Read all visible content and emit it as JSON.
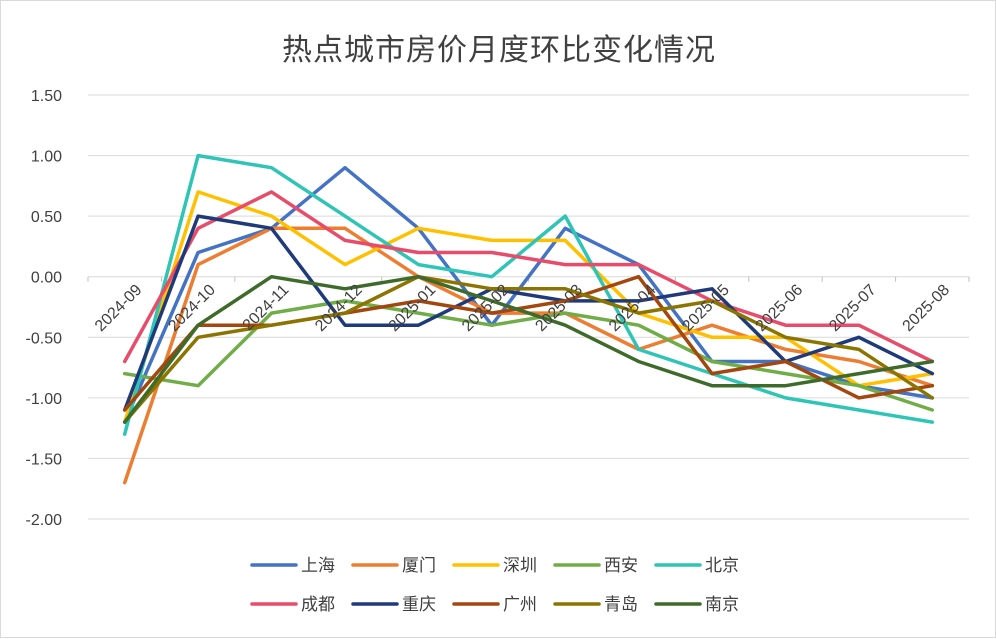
{
  "chart_data": {
    "type": "line",
    "title": "热点城市房价月度环比变化情况",
    "xlabel": "",
    "ylabel": "",
    "ylim": [
      -2.0,
      1.5
    ],
    "ytick_step": 0.5,
    "grid": true,
    "legend_position": "bottom",
    "categories": [
      "2024-09",
      "2024-10",
      "2024-11",
      "2024-12",
      "2025-01",
      "2025-02",
      "2025-03",
      "2025-04",
      "2025-05",
      "2025-06",
      "2025-07",
      "2025-08"
    ],
    "series": [
      {
        "name": "上海",
        "color": "#4472C4",
        "values": [
          -1.2,
          0.2,
          0.4,
          0.9,
          0.4,
          -0.4,
          0.4,
          0.1,
          -0.7,
          -0.7,
          -0.9,
          -1.0
        ]
      },
      {
        "name": "厦门",
        "color": "#ED7D31",
        "values": [
          -1.7,
          0.1,
          0.4,
          0.4,
          0.0,
          -0.3,
          -0.3,
          -0.6,
          -0.4,
          -0.6,
          -0.7,
          -0.9
        ]
      },
      {
        "name": "深圳",
        "color": "#FFC000",
        "values": [
          -1.2,
          0.7,
          0.5,
          0.1,
          0.4,
          0.3,
          0.3,
          -0.3,
          -0.5,
          -0.5,
          -0.9,
          -0.8
        ]
      },
      {
        "name": "西安",
        "color": "#70AD47",
        "values": [
          -0.8,
          -0.9,
          -0.3,
          -0.2,
          -0.3,
          -0.4,
          -0.3,
          -0.4,
          -0.7,
          -0.8,
          -0.9,
          -1.1
        ]
      },
      {
        "name": "北京",
        "color": "#2EC4B6",
        "values": [
          -1.3,
          1.0,
          0.9,
          0.5,
          0.1,
          0.0,
          0.5,
          -0.6,
          -0.8,
          -1.0,
          -1.1,
          -1.2
        ]
      },
      {
        "name": "成都",
        "color": "#E84C6A",
        "values": [
          -0.7,
          0.4,
          0.7,
          0.3,
          0.2,
          0.2,
          0.1,
          0.1,
          -0.2,
          -0.4,
          -0.4,
          -0.7
        ]
      },
      {
        "name": "重庆",
        "color": "#1F3A7A",
        "values": [
          -1.1,
          0.5,
          0.4,
          -0.4,
          -0.4,
          -0.1,
          -0.2,
          -0.2,
          -0.1,
          -0.7,
          -0.5,
          -0.8
        ]
      },
      {
        "name": "广州",
        "color": "#A3470F",
        "values": [
          -1.1,
          -0.4,
          -0.4,
          -0.3,
          -0.2,
          -0.3,
          -0.2,
          0.0,
          -0.8,
          -0.7,
          -1.0,
          -0.9
        ]
      },
      {
        "name": "青岛",
        "color": "#8B7500",
        "values": [
          -1.2,
          -0.5,
          -0.4,
          -0.3,
          0.0,
          -0.1,
          -0.1,
          -0.3,
          -0.2,
          -0.5,
          -0.6,
          -1.0
        ]
      },
      {
        "name": "南京",
        "color": "#3F6B2A",
        "values": [
          -1.2,
          -0.4,
          0.0,
          -0.1,
          0.0,
          -0.2,
          -0.4,
          -0.7,
          -0.9,
          -0.9,
          -0.8,
          -0.7
        ]
      }
    ]
  }
}
